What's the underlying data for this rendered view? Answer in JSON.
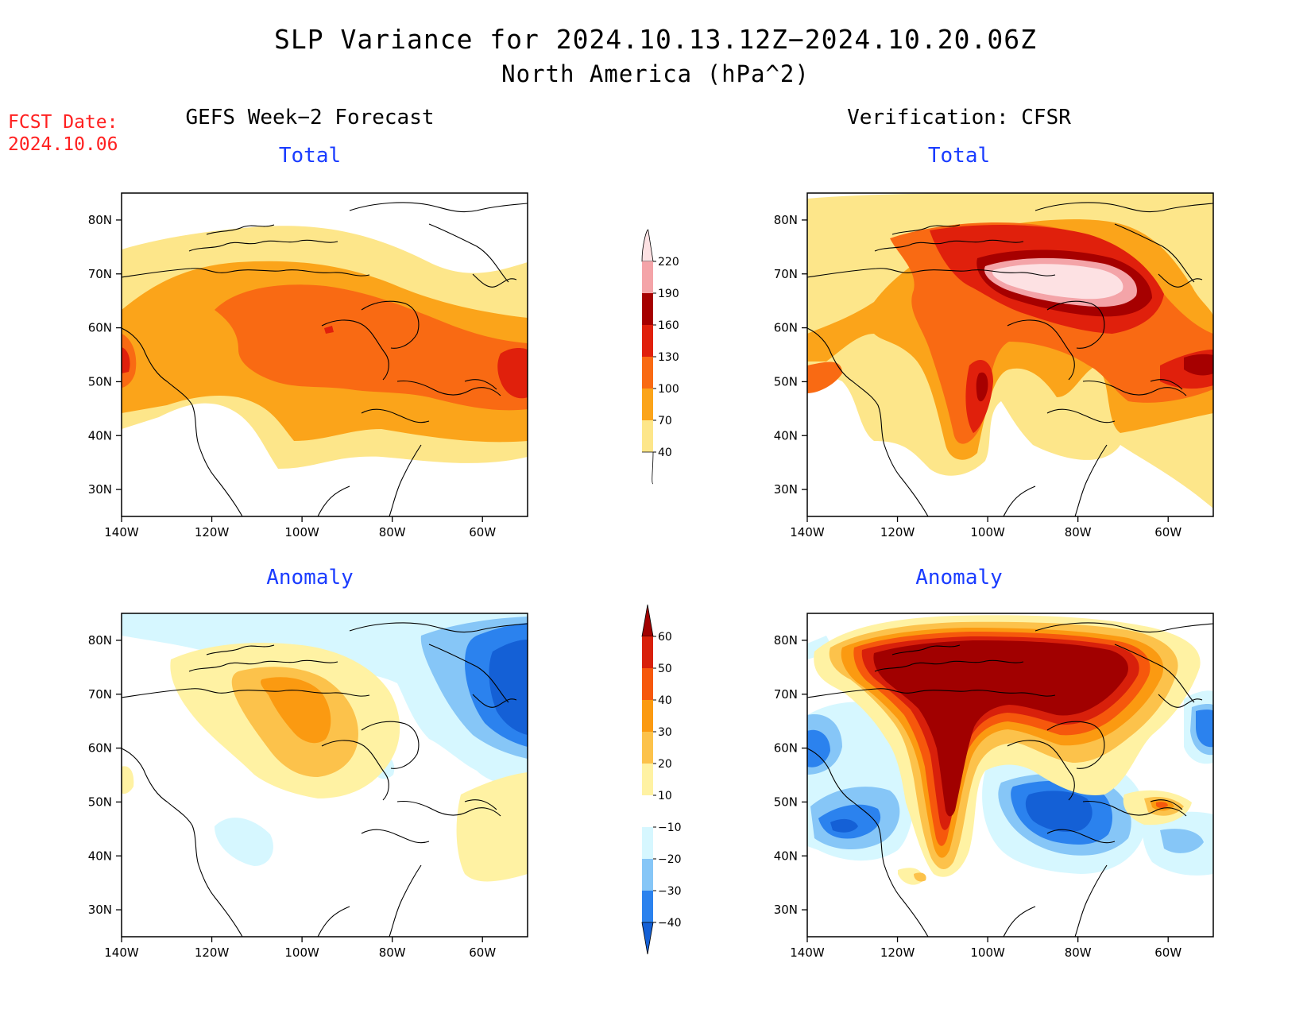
{
  "title": "SLP Variance for 2024.10.13.12Z−2024.10.20.06Z",
  "subtitle": "North America (hPa^2)",
  "fcst_label": "FCST Date:",
  "fcst_date": "2024.10.06",
  "columns": {
    "left": "GEFS Week−2 Forecast",
    "right": "Verification: CFSR"
  },
  "panels": {
    "top_left": "Total",
    "top_right": "Total",
    "bottom_left": "Anomaly",
    "bottom_right": "Anomaly"
  },
  "axes": {
    "lon_labels": [
      "140W",
      "120W",
      "100W",
      "80W",
      "60W"
    ],
    "lat_labels": [
      "80N",
      "70N",
      "60N",
      "50N",
      "40N",
      "30N"
    ]
  },
  "colorbar_total": {
    "levels": [
      "40",
      "70",
      "100",
      "130",
      "160",
      "190",
      "220"
    ],
    "colors": [
      "#ffffff",
      "#fde68a",
      "#fba41a",
      "#f96a13",
      "#e0200c",
      "#a60000",
      "#f4a4a8",
      "#fde1e3"
    ]
  },
  "colorbar_anomaly": {
    "levels": [
      "−40",
      "−30",
      "−20",
      "−10",
      "10",
      "20",
      "30",
      "40",
      "50",
      "60"
    ],
    "colors": [
      "#1460d6",
      "#2b82ee",
      "#86c6f7",
      "#d6f7ff",
      "#ffffff",
      "#fff2a3",
      "#fcc24b",
      "#fb9a11",
      "#f6580c",
      "#d8200b",
      "#a10000"
    ]
  },
  "chart_data": {
    "type": "heatmap",
    "title": "SLP Variance for 2024.10.13.12Z−2024.10.20.06Z",
    "subtitle": "North America (hPa^2)",
    "x_range": [
      "140W",
      "50W"
    ],
    "y_range": [
      "25N",
      "85N"
    ],
    "panels": [
      {
        "name": "GEFS Week−2 Forecast Total",
        "max_approx": 160,
        "max_region": "55W 52N"
      },
      {
        "name": "Verification: CFSR Total",
        "max_approx": 220,
        "max_region": "85W 68N"
      },
      {
        "name": "GEFS Week−2 Forecast Anomaly",
        "min_approx": -40,
        "max_approx": 30
      },
      {
        "name": "Verification: CFSR Anomaly",
        "min_approx": -40,
        "max_approx": 60
      }
    ]
  }
}
